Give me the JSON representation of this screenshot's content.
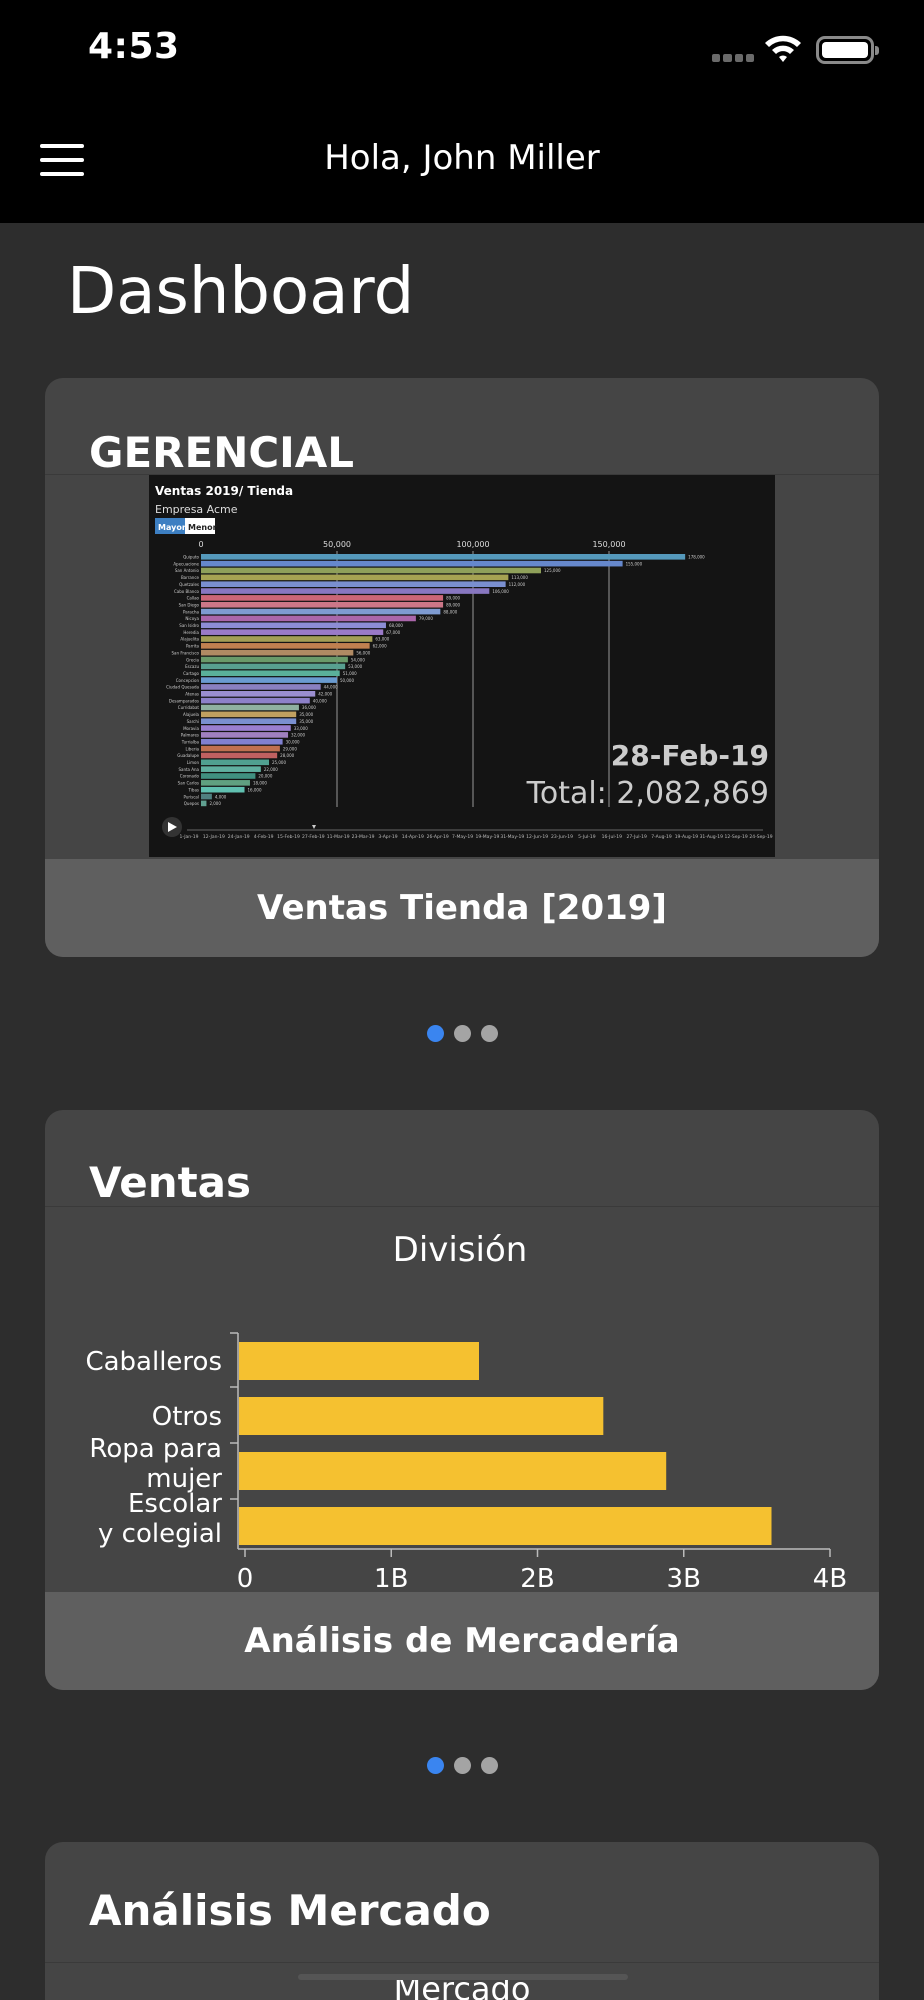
{
  "status_bar": {
    "time": "4:53"
  },
  "header": {
    "greeting": "Hola, John Miller"
  },
  "page": {
    "title": "Dashboard"
  },
  "card_gerencial": {
    "title": "GERENCIAL",
    "footer": "Ventas Tienda [2019]",
    "chart": {
      "title": "Ventas 2019/ Tienda",
      "subtitle": "Empresa Acme",
      "toggle_options": [
        "Mayor",
        "Menor"
      ],
      "axis_ticks": [
        "0",
        "50,000",
        "100,000",
        "150,000"
      ],
      "date_label": "28-Feb-19",
      "total_label": "Total: 2,082,869",
      "timeline_labels": [
        "1-Jan-19",
        "12-Jan-19",
        "24-Jan-19",
        "4-Feb-19",
        "15-Feb-19",
        "27-Feb-19",
        "11-Mar-19",
        "23-Mar-19",
        "3-Apr-19",
        "14-Apr-19",
        "26-Apr-19",
        "7-May-19",
        "19-May-19",
        "31-May-19",
        "12-Jun-19",
        "23-Jun-19",
        "5-Jul-19",
        "16-Jul-19",
        "27-Jul-19",
        "7-Aug-19",
        "19-Aug-19",
        "31-Aug-19",
        "12-Sep-19",
        "24-Sep-19"
      ]
    },
    "pager": {
      "count": 3,
      "active": 0
    }
  },
  "card_ventas": {
    "title": "Ventas",
    "footer": "Análisis de Mercadería",
    "pager": {
      "count": 3,
      "active": 0
    }
  },
  "card_mercado": {
    "title": "Análisis Mercado",
    "chart_title": "Mercado"
  },
  "chart_data": [
    {
      "type": "bar",
      "orientation": "horizontal",
      "title": "Ventas 2019/ Tienda",
      "subtitle": "Empresa Acme",
      "categories": [
        "Quiputo",
        "Apecuacione",
        "San Antonio",
        "Barrance",
        "Quetzales",
        "Cabo Blanco",
        "Callao",
        "San Diego",
        "Paracha",
        "Nicoya",
        "San Isidro",
        "Heredia",
        "Alajuelita",
        "Parrita",
        "San Francisco",
        "Grecia",
        "Escazu",
        "Cartago",
        "Concepcion",
        "Ciudad Quesada",
        "Atenas",
        "Desamparados",
        "Curridabat",
        "Alajuela",
        "Sarchi",
        "Moravia",
        "Palmares",
        "Turrialba",
        "Liberia",
        "Guadalupe",
        "Limon",
        "Santa Ana",
        "Coronado",
        "San Carlos",
        "Tibas",
        "Puriscal",
        "Quepos"
      ],
      "values": [
        178000,
        155000,
        125000,
        113000,
        112000,
        106000,
        89000,
        89000,
        88000,
        79000,
        68000,
        67000,
        63000,
        62000,
        56000,
        54000,
        53000,
        51000,
        50000,
        44000,
        42000,
        40000,
        36000,
        35000,
        35000,
        33000,
        32000,
        30000,
        29000,
        28000,
        25000,
        22000,
        20000,
        18000,
        16000,
        4000,
        2000
      ],
      "xlim": [
        0,
        200000
      ],
      "date": "28-Feb-19",
      "total": "2,082,869",
      "colors": [
        "#5599bb",
        "#6688cc",
        "#8fa05a",
        "#a6a352",
        "#7a8fcf",
        "#8877c0",
        "#cc6677",
        "#cc7788",
        "#7e9bd1",
        "#aa66aa",
        "#8d8dd5",
        "#9a7ac7",
        "#a39e55",
        "#c08050",
        "#b08a63",
        "#6a9a6a",
        "#58a090",
        "#5ab09a",
        "#6a9bd0",
        "#8a80c0",
        "#9b8ed0",
        "#8d80c8",
        "#8fb0a0",
        "#c0a060",
        "#7a90d0",
        "#9a7fd0",
        "#a080c0",
        "#8080d0",
        "#c07050",
        "#c06060",
        "#50a090",
        "#60b0a0",
        "#409080",
        "#60a080",
        "#60c0b0",
        "#508080",
        "#60a090"
      ]
    },
    {
      "type": "bar",
      "orientation": "horizontal",
      "title": "División",
      "categories": [
        "Caballeros",
        "Otros",
        "Ropa para mujer",
        "Escolar y colegial"
      ],
      "values": [
        1.6,
        2.45,
        2.88,
        3.6
      ],
      "unit": "B",
      "xlim": [
        0,
        4
      ],
      "xticks": [
        "0",
        "1B",
        "2B",
        "3B",
        "4B"
      ],
      "bar_color": "#f5c130"
    }
  ]
}
